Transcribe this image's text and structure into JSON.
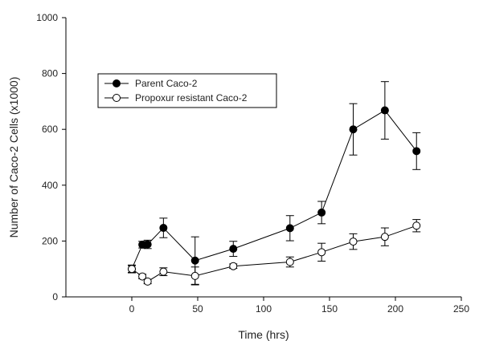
{
  "chart_data": {
    "type": "scatter",
    "xlabel": "Time (hrs)",
    "ylabel": "Number of Caco-2 Cells (x1000)",
    "xlim": [
      -50,
      250
    ],
    "ylim": [
      0,
      1000
    ],
    "xticks": [
      0,
      50,
      100,
      150,
      200,
      250
    ],
    "yticks": [
      0,
      200,
      400,
      600,
      800,
      1000
    ],
    "legend_position": "top-left",
    "series": [
      {
        "name": "Parent Caco-2",
        "marker": "filled-circle",
        "color": "#000000",
        "x": [
          0,
          8,
          12,
          24,
          48,
          77,
          120,
          144,
          168,
          192,
          216
        ],
        "y": [
          100,
          187,
          188,
          247,
          130,
          172,
          246,
          302,
          600,
          668,
          522
        ],
        "err": [
          14,
          12,
          15,
          35,
          85,
          27,
          45,
          40,
          92,
          103,
          66
        ]
      },
      {
        "name": "Propoxur resistant Caco-2",
        "marker": "open-circle",
        "color": "#000000",
        "x": [
          0,
          8,
          12,
          24,
          48,
          77,
          120,
          144,
          168,
          192,
          216
        ],
        "y": [
          100,
          73,
          55,
          90,
          75,
          110,
          125,
          160,
          198,
          215,
          255
        ],
        "err": [
          12,
          8,
          8,
          14,
          32,
          8,
          18,
          32,
          28,
          32,
          22
        ]
      }
    ]
  }
}
